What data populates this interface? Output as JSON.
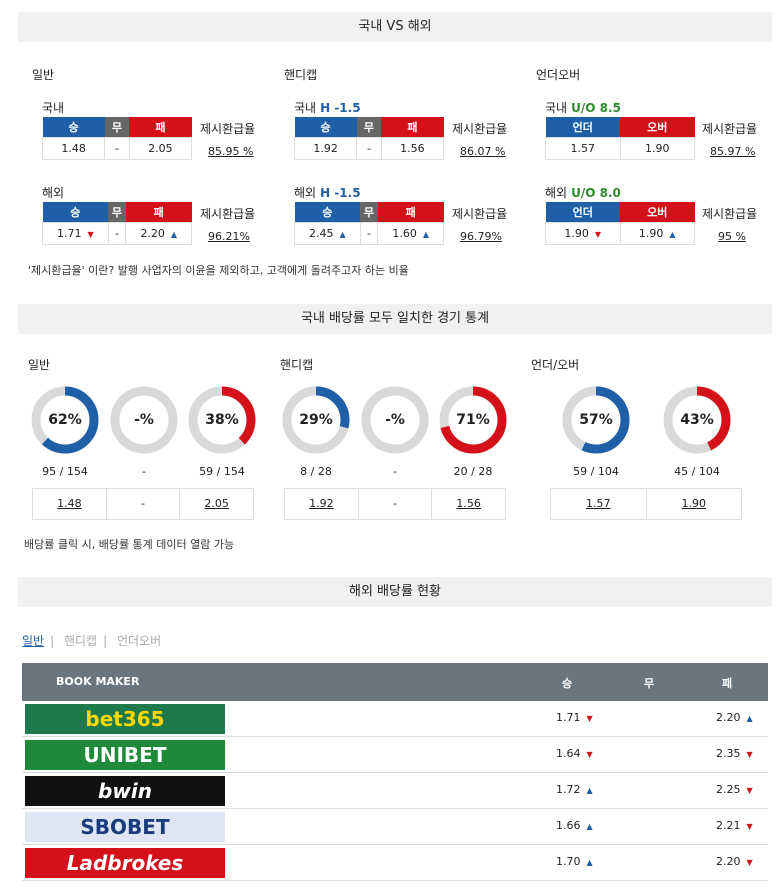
{
  "section1": {
    "title": "국내 VS 해외"
  },
  "cols": {
    "general": {
      "title": "일반"
    },
    "handicap": {
      "title": "핸디캡"
    },
    "ou": {
      "title": "언더오버"
    }
  },
  "labels": {
    "domestic": "국내",
    "overseas": "해외",
    "refund": "제시환급율",
    "win": "승",
    "draw": "무",
    "lose": "패",
    "under": "언더",
    "over": "오버"
  },
  "general": {
    "dom": {
      "w": "1.48",
      "d": "-",
      "l": "2.05",
      "refund": "85.95 %"
    },
    "ovs": {
      "w": "1.71",
      "d": "-",
      "l": "2.20",
      "refund": "96.21%"
    }
  },
  "handicap": {
    "dom": {
      "line": "H -1.5",
      "w": "1.92",
      "d": "-",
      "l": "1.56",
      "refund": "86.07 %"
    },
    "ovs": {
      "line": "H -1.5",
      "w": "2.45",
      "d": "-",
      "l": "1.60",
      "refund": "96.79%"
    }
  },
  "ou": {
    "dom": {
      "line": "U/O 8.5",
      "u": "1.57",
      "o": "1.90",
      "refund": "85.97 %"
    },
    "ovs": {
      "line": "U/O 8.0",
      "u": "1.90",
      "o": "1.90",
      "refund": "95 %"
    }
  },
  "note1": "'제시환급율' 이란? 발행 사업자의 이윤을 제외하고, 고객에게 돌려주고자 하는 비율",
  "section2": {
    "title": "국내 배당률 모두 일치한 경기 통계"
  },
  "stats_titles": {
    "general": "일반",
    "handicap": "핸디캡",
    "ou": "언더/오버"
  },
  "stats": {
    "general": [
      {
        "pct": 62,
        "label": "62%",
        "count": "95 / 154",
        "color": "#1f5fa8"
      },
      {
        "pct": 0,
        "label": "-%",
        "count": "-",
        "color": "#999"
      },
      {
        "pct": 38,
        "label": "38%",
        "count": "59 / 154",
        "color": "#d4111a"
      }
    ],
    "handicap": [
      {
        "pct": 29,
        "label": "29%",
        "count": "8 / 28",
        "color": "#1f5fa8"
      },
      {
        "pct": 0,
        "label": "-%",
        "count": "-",
        "color": "#999"
      },
      {
        "pct": 71,
        "label": "71%",
        "count": "20 / 28",
        "color": "#d4111a"
      }
    ],
    "ou": [
      {
        "pct": 57,
        "label": "57%",
        "count": "59 / 104",
        "color": "#1f5fa8"
      },
      {
        "pct": 43,
        "label": "43%",
        "count": "45 / 104",
        "color": "#d4111a"
      }
    ]
  },
  "stat_boxes": {
    "general": [
      "1.48",
      "-",
      "2.05"
    ],
    "handicap": [
      "1.92",
      "-",
      "1.56"
    ],
    "ou": [
      "1.57",
      "1.90"
    ]
  },
  "note2": "배당률 클릭 시, 배당률 통계 데이터 열람 가능",
  "section3": {
    "title": "해외 배당률 현황"
  },
  "tabs": [
    "일반",
    "핸디캡",
    "언더오버"
  ],
  "bm_head": {
    "maker": "BOOK MAKER",
    "w": "승",
    "d": "무",
    "l": "패"
  },
  "bookmakers": [
    {
      "name": "bet365",
      "w": "1.71",
      "wdir": "down",
      "l": "2.20",
      "ldir": "up",
      "bg": "#1e7a4a",
      "fg": "#ffd700"
    },
    {
      "name": "UNIBET",
      "w": "1.64",
      "wdir": "down",
      "l": "2.35",
      "ldir": "down",
      "bg": "#1e8a3a",
      "fg": "#ffffff"
    },
    {
      "name": "bwin",
      "w": "1.72",
      "wdir": "up",
      "l": "2.25",
      "ldir": "down",
      "bg": "#111111",
      "fg": "#ffffff"
    },
    {
      "name": "SBOBET",
      "w": "1.66",
      "wdir": "up",
      "l": "2.21",
      "ldir": "down",
      "bg": "#dde6f2",
      "fg": "#1a3a7a"
    },
    {
      "name": "Ladbrokes",
      "w": "1.70",
      "wdir": "up",
      "l": "2.20",
      "ldir": "down",
      "bg": "#d4111a",
      "fg": "#ffffff"
    }
  ]
}
